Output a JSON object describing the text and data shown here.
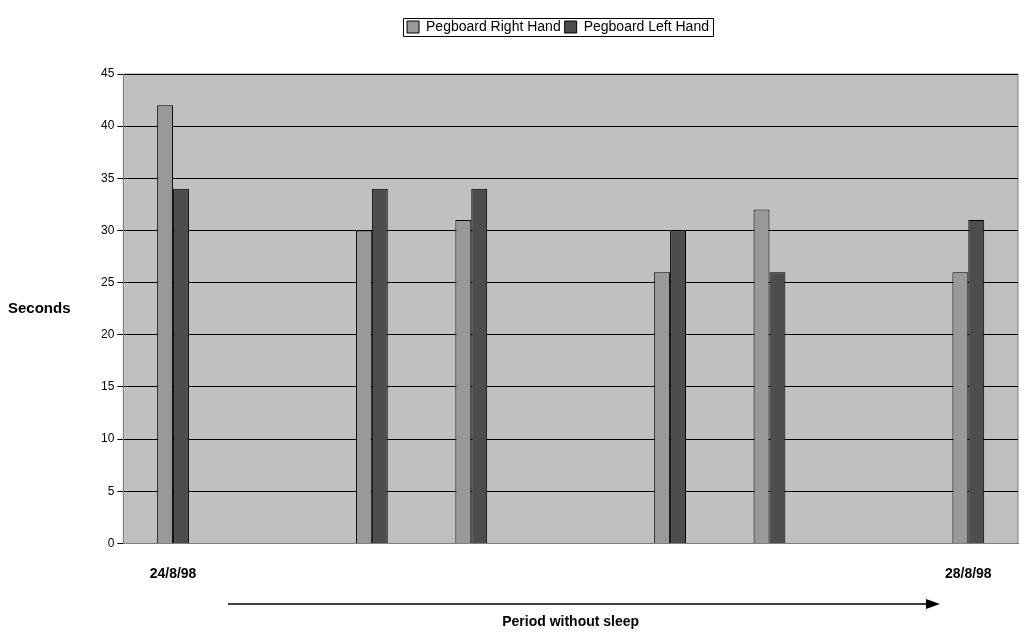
{
  "chart_data": {
    "type": "bar",
    "xlabel": "Period without sleep",
    "ylabel": "Seconds",
    "categories": [
      "24/8/98",
      null,
      null,
      null,
      null,
      null,
      null,
      null,
      "28/8/98"
    ],
    "series": [
      {
        "name": "Pegboard Right Hand",
        "color": "#999999",
        "values": [
          42,
          null,
          30,
          31,
          null,
          26,
          32,
          null,
          26
        ]
      },
      {
        "name": "Pegboard Left Hand",
        "color": "#4d4d4d",
        "values": [
          34,
          null,
          34,
          34,
          null,
          30,
          26,
          null,
          31
        ]
      }
    ],
    "ylim": [
      0,
      45
    ],
    "yticks": [
      0,
      5,
      10,
      15,
      20,
      25,
      30,
      35,
      40,
      45
    ],
    "grid": "y",
    "legend": "top"
  }
}
